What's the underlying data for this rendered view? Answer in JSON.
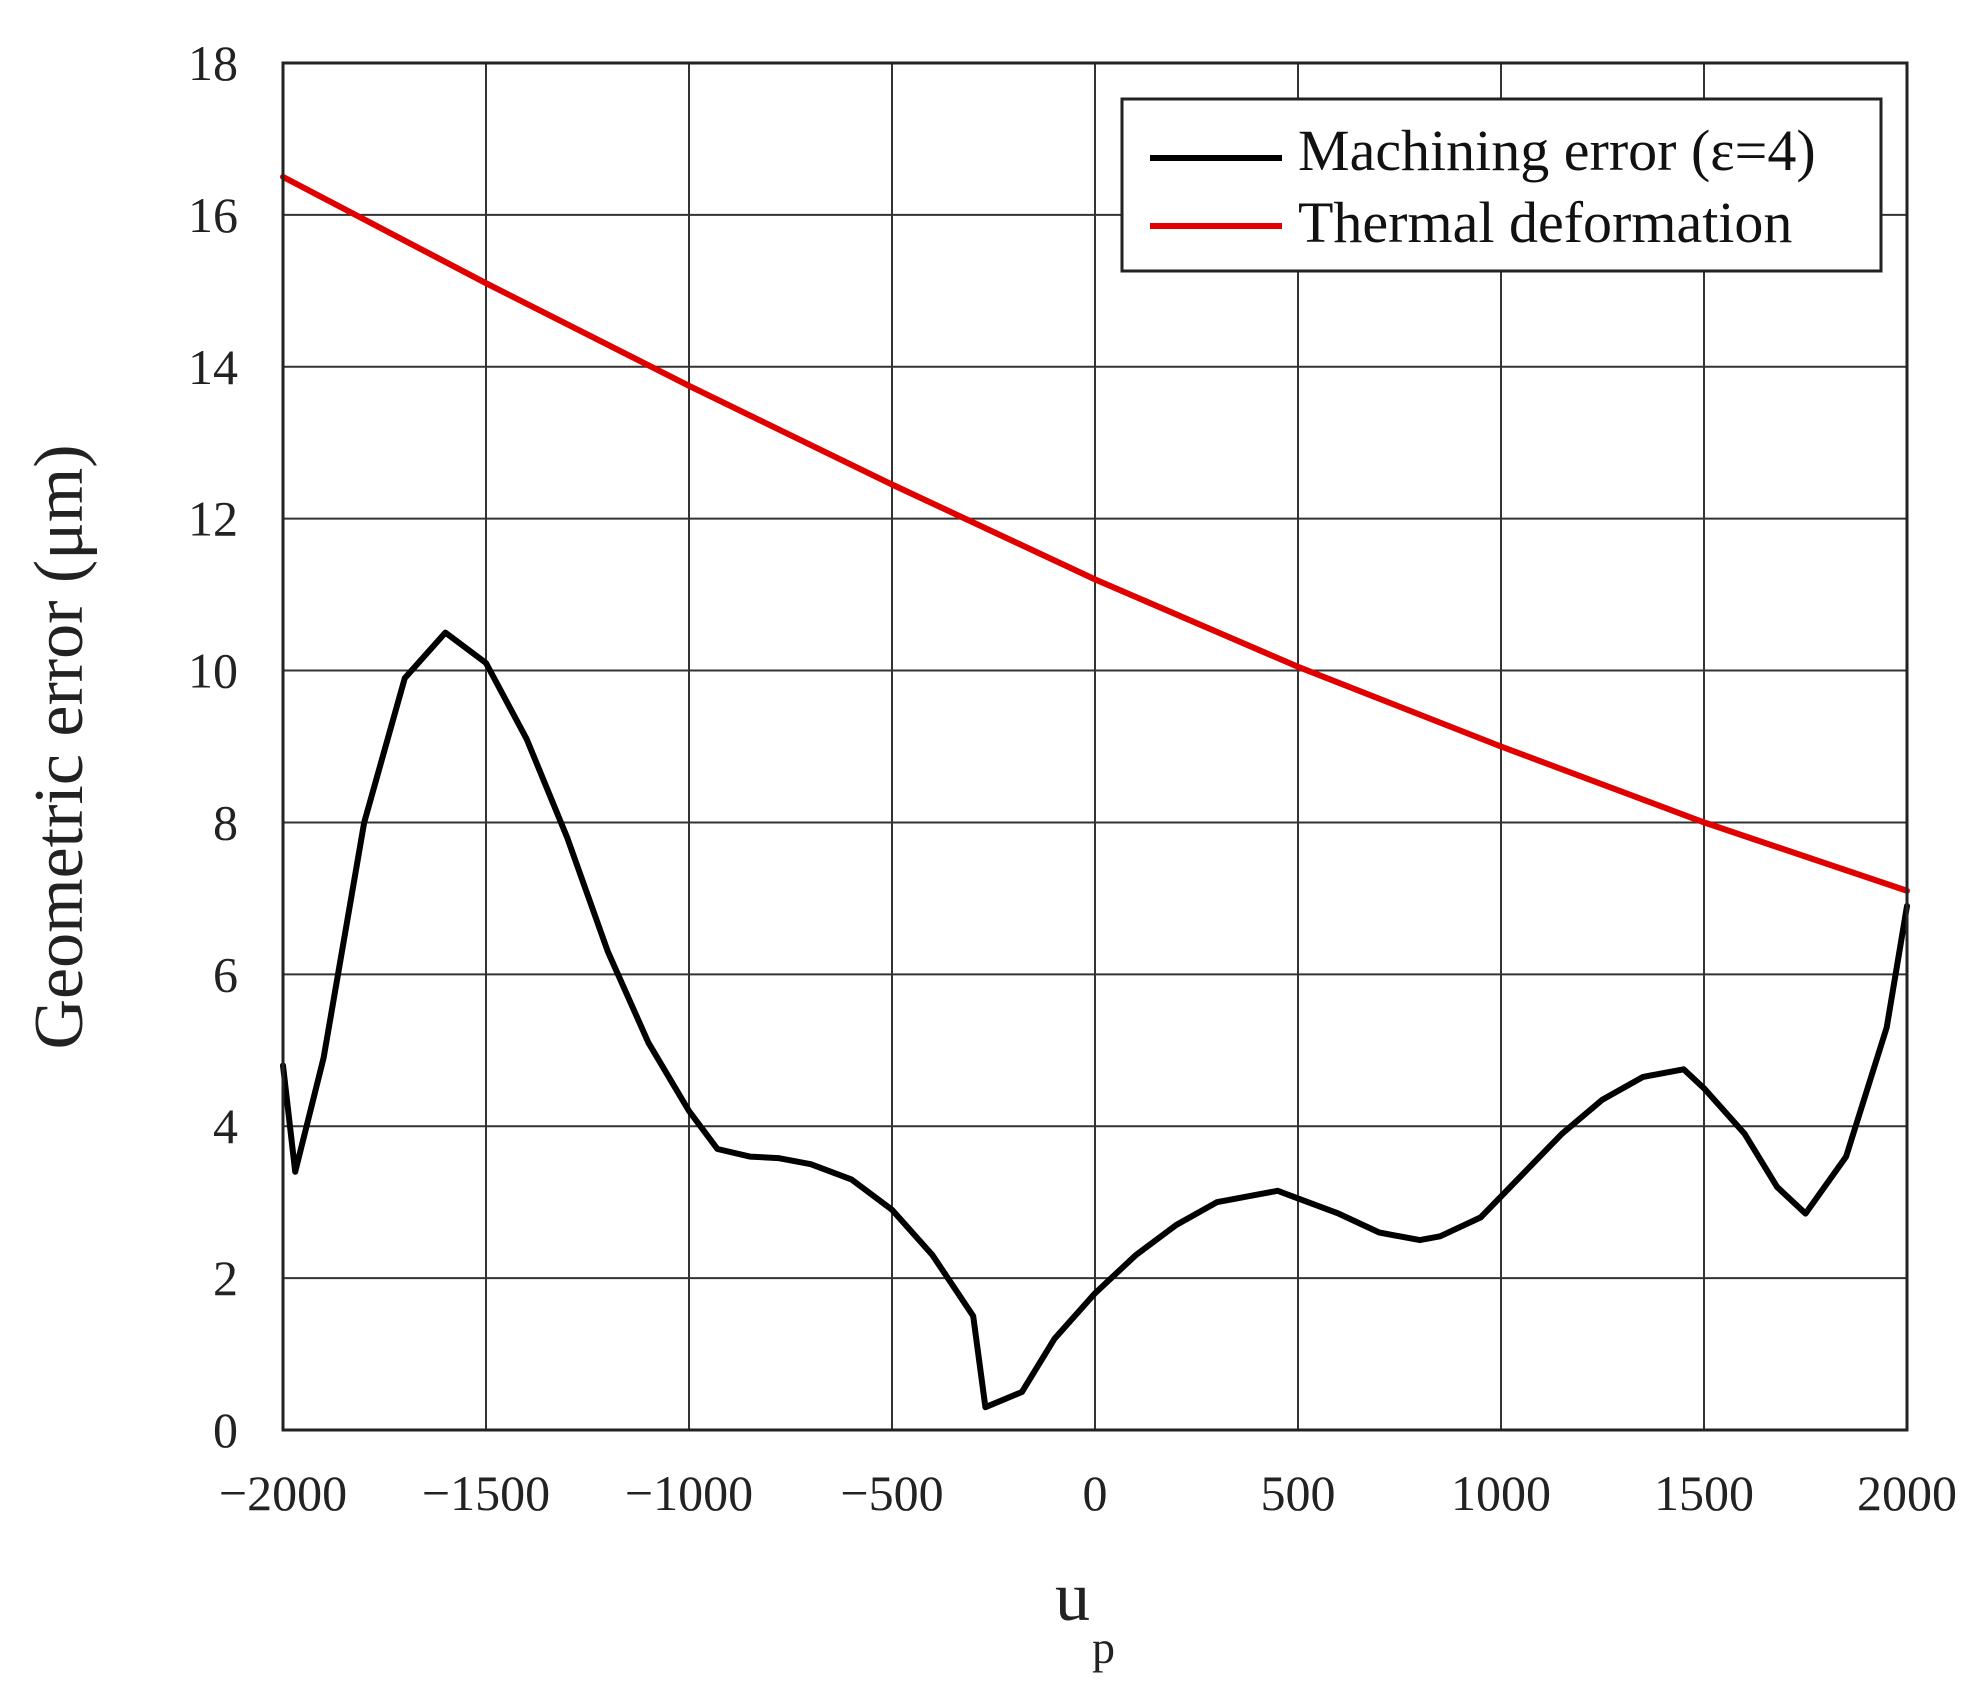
{
  "chart_data": {
    "type": "line",
    "title": "",
    "xlabel": "u",
    "xlabel_sub": "p",
    "ylabel": "Geometric error (μm)",
    "xlim": [
      -2000,
      2000
    ],
    "ylim": [
      0,
      18
    ],
    "grid": true,
    "legend_position": "top-right",
    "x_ticks": [
      -2000,
      -1500,
      -1000,
      -500,
      0,
      500,
      1000,
      1500,
      2000
    ],
    "x_tick_labels": [
      "−2000",
      "−1500",
      "−1000",
      "−500",
      "0",
      "500",
      "1000",
      "1500",
      "2000"
    ],
    "y_ticks": [
      0,
      2,
      4,
      6,
      8,
      10,
      12,
      14,
      16,
      18
    ],
    "y_tick_labels": [
      "0",
      "2",
      "4",
      "6",
      "8",
      "10",
      "12",
      "14",
      "16",
      "18"
    ],
    "series": [
      {
        "name": "Machining error (ε=4)",
        "color": "#000000",
        "x": [
          -2000,
          -1970,
          -1900,
          -1800,
          -1700,
          -1600,
          -1500,
          -1400,
          -1300,
          -1200,
          -1100,
          -1000,
          -930,
          -850,
          -780,
          -700,
          -600,
          -500,
          -400,
          -300,
          -270,
          -180,
          -100,
          0,
          100,
          200,
          300,
          400,
          450,
          500,
          600,
          700,
          800,
          850,
          950,
          1050,
          1150,
          1250,
          1350,
          1450,
          1500,
          1600,
          1680,
          1750,
          1850,
          1950,
          2000
        ],
        "y": [
          4.8,
          3.4,
          4.9,
          8.0,
          9.9,
          10.5,
          10.1,
          9.1,
          7.8,
          6.3,
          5.1,
          4.2,
          3.7,
          3.6,
          3.58,
          3.5,
          3.3,
          2.9,
          2.3,
          1.5,
          0.3,
          0.5,
          1.2,
          1.8,
          2.3,
          2.7,
          3.0,
          3.1,
          3.15,
          3.05,
          2.85,
          2.6,
          2.5,
          2.55,
          2.8,
          3.35,
          3.9,
          4.35,
          4.65,
          4.75,
          4.5,
          3.9,
          3.2,
          2.85,
          3.6,
          5.3,
          6.9
        ]
      },
      {
        "name": "Thermal deformation",
        "color": "#e00000",
        "x": [
          -2000,
          -1500,
          -1000,
          -500,
          0,
          500,
          1000,
          1500,
          2000
        ],
        "y": [
          16.5,
          15.1,
          13.75,
          12.45,
          11.2,
          10.05,
          9.0,
          8.0,
          7.1
        ]
      }
    ]
  }
}
